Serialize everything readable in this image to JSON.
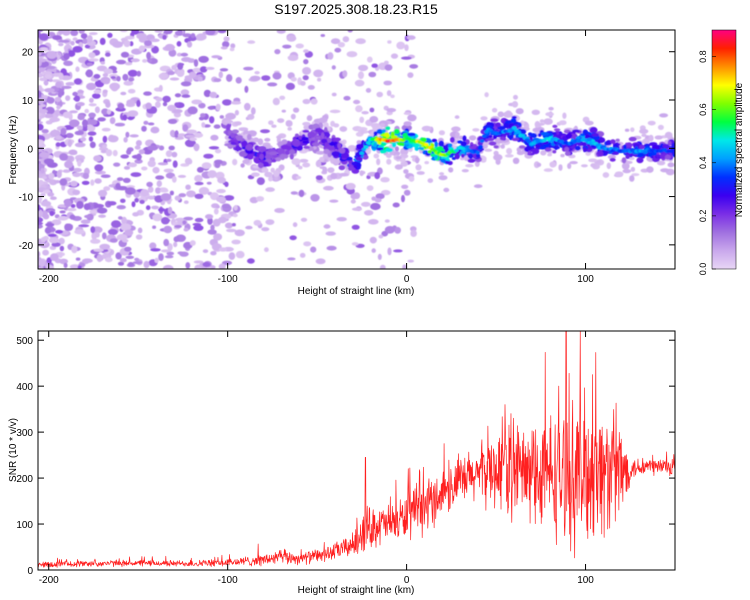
{
  "title": "S197.2025.308.18.23.R15",
  "chart_data": [
    {
      "type": "heatmap",
      "xlabel": "Height of straight line (km)",
      "ylabel": "Frequency (Hz)",
      "xlim": [
        -206,
        150
      ],
      "ylim": [
        -25,
        24.5
      ],
      "xticks": [
        -200,
        -100,
        0,
        100
      ],
      "yticks": [
        20,
        10,
        0,
        -10,
        -20
      ],
      "colorbar": {
        "label": "Normalized spectral amplitude",
        "range": [
          0.0,
          0.9
        ],
        "ticks": [
          0.0,
          0.2,
          0.4,
          0.6,
          0.8
        ],
        "colors": [
          "#e8d6f5",
          "#c9a8ec",
          "#a070e0",
          "#7a2ee6",
          "#3a00f0",
          "#0030ff",
          "#00a0ff",
          "#00e8e8",
          "#00ff40",
          "#80ff00",
          "#ffff00",
          "#ff9000",
          "#ff2000",
          "#ff0080"
        ]
      },
      "ridge": {
        "x": [
          -100,
          -90,
          -80,
          -70,
          -60,
          -50,
          -40,
          -30,
          -20,
          -10,
          0,
          10,
          20,
          30,
          40,
          45,
          50,
          60,
          70,
          80,
          90,
          100,
          110,
          120,
          130,
          140,
          150
        ],
        "freq": [
          3,
          0,
          -2,
          -1,
          1,
          3,
          0,
          -4,
          2,
          1.5,
          2,
          1,
          -1.5,
          0,
          -1,
          4,
          3,
          4,
          1,
          2,
          1,
          2,
          0,
          -0.5,
          -0.5,
          -0.5,
          -0.5
        ],
        "amplitude": [
          0.25,
          0.3,
          0.3,
          0.2,
          0.3,
          0.25,
          0.3,
          0.35,
          0.5,
          0.85,
          0.55,
          0.7,
          0.6,
          0.45,
          0.35,
          0.4,
          0.35,
          0.45,
          0.4,
          0.45,
          0.35,
          0.45,
          0.4,
          0.35,
          0.4,
          0.35,
          0.35
        ]
      }
    },
    {
      "type": "line",
      "xlabel": "Height of straight line (km)",
      "ylabel": "SNR (10 * v/v)",
      "xlim": [
        -206,
        150
      ],
      "ylim": [
        0,
        520
      ],
      "xticks": [
        -200,
        -100,
        0,
        100
      ],
      "yticks": [
        0,
        100,
        200,
        300,
        400,
        500
      ],
      "color": "#ff2020",
      "series": [
        {
          "name": "SNR",
          "x": [
            -206,
            -180,
            -150,
            -120,
            -100,
            -80,
            -70,
            -60,
            -50,
            -40,
            -30,
            -25,
            -20,
            -10,
            0,
            10,
            20,
            30,
            40,
            50,
            60,
            70,
            80,
            90,
            100,
            110,
            120,
            125,
            130,
            140,
            150
          ],
          "baseline": [
            12,
            14,
            15,
            14,
            16,
            22,
            28,
            25,
            30,
            40,
            55,
            85,
            95,
            100,
            115,
            135,
            170,
            190,
            210,
            220,
            225,
            200,
            210,
            205,
            215,
            215,
            210,
            220,
            225,
            225,
            225
          ],
          "spread": [
            8,
            8,
            8,
            8,
            10,
            15,
            20,
            15,
            18,
            22,
            30,
            60,
            55,
            50,
            60,
            70,
            60,
            65,
            75,
            100,
            140,
            120,
            160,
            180,
            200,
            170,
            140,
            30,
            25,
            25,
            25
          ],
          "peaks": [
            {
              "x": -23,
              "y": 245
            },
            {
              "x": 21,
              "y": 275
            },
            {
              "x": 55,
              "y": 360
            },
            {
              "x": 85,
              "y": 400
            },
            {
              "x": 97,
              "y": 520
            },
            {
              "x": 104,
              "y": 425
            }
          ]
        }
      ]
    }
  ]
}
